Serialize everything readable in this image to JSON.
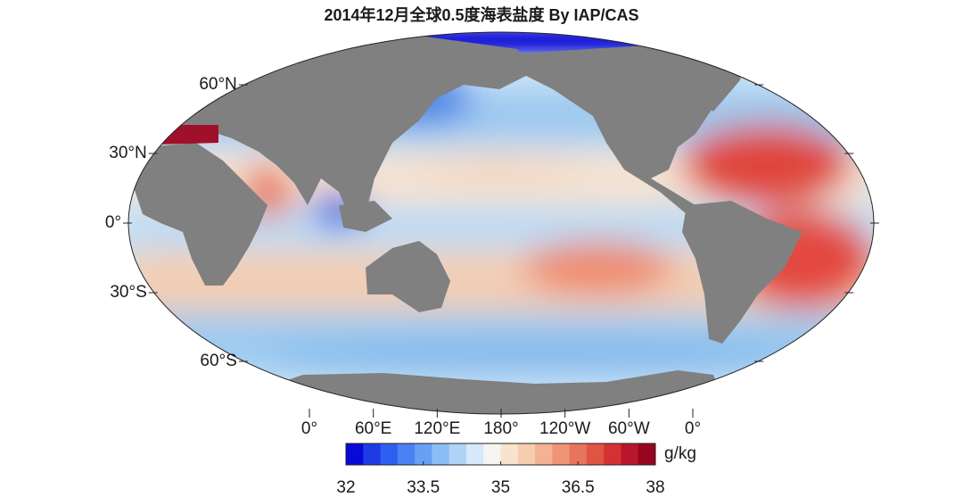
{
  "title": "2014年12月全球0.5度海表盐度 By IAP/CAS",
  "lat_labels": [
    "60°N",
    "30°N",
    "0°",
    "30°S",
    "60°S"
  ],
  "lon_labels": [
    "0°",
    "60°E",
    "120°E",
    "180°",
    "120°W",
    "60°W",
    "0°"
  ],
  "colorbar": {
    "unit": "g/kg",
    "lim": [
      32,
      38
    ],
    "ticks": [
      32,
      33.5,
      35,
      36.5,
      38
    ]
  }
}
